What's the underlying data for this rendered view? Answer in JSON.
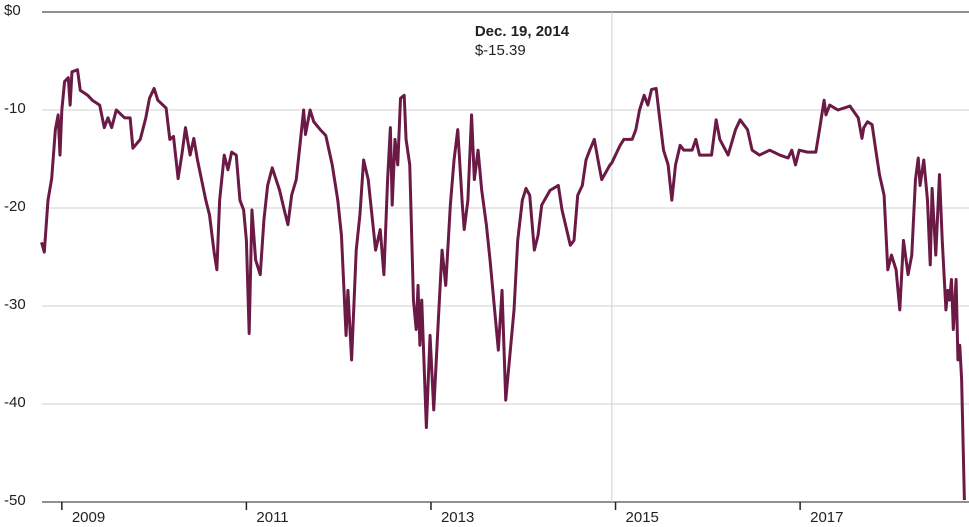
{
  "chart_data": {
    "type": "line",
    "xlim": [
      2008.33,
      2018.83
    ],
    "xticks": [
      2009,
      2011,
      2013,
      2015,
      2017
    ],
    "ylim": [
      -50,
      0
    ],
    "yticks": [
      {
        "value": 0,
        "label": "$0"
      },
      -10,
      -20,
      -30,
      -40,
      -50
    ],
    "grid": true,
    "annotation": {
      "x": 2014.96,
      "label": "Dec. 19, 2014",
      "value": -15.39,
      "value_label": "$-15.39"
    },
    "series": [
      {
        "color": "#6b1a45",
        "x": [
          2008.78,
          2008.81,
          2008.85,
          2008.89,
          2008.93,
          2008.96,
          2008.98,
          2009.0,
          2009.03,
          2009.07,
          2009.09,
          2009.11,
          2009.17,
          2009.2,
          2009.28,
          2009.33,
          2009.41,
          2009.46,
          2009.5,
          2009.54,
          2009.59,
          2009.68,
          2009.74,
          2009.77,
          2009.85,
          2009.91,
          2009.95,
          2010.0,
          2010.04,
          2010.13,
          2010.17,
          2010.21,
          2010.26,
          2010.3,
          2010.34,
          2010.39,
          2010.43,
          2010.47,
          2010.56,
          2010.6,
          2010.65,
          2010.68,
          2010.71,
          2010.76,
          2010.8,
          2010.84,
          2010.89,
          2010.93,
          2010.97,
          2011.0,
          2011.03,
          2011.06,
          2011.1,
          2011.15,
          2011.19,
          2011.23,
          2011.28,
          2011.36,
          2011.41,
          2011.45,
          2011.49,
          2011.54,
          2011.58,
          2011.62,
          2011.64,
          2011.69,
          2011.73,
          2011.8,
          2011.86,
          2011.93,
          2011.99,
          2012.03,
          2012.08,
          2012.1,
          2012.14,
          2012.19,
          2012.23,
          2012.27,
          2012.32,
          2012.4,
          2012.45,
          2012.49,
          2012.53,
          2012.56,
          2012.58,
          2012.61,
          2012.64,
          2012.67,
          2012.71,
          2012.73,
          2012.77,
          2012.81,
          2012.84,
          2012.86,
          2012.88,
          2012.9,
          2012.95,
          2012.99,
          2013.03,
          2013.08,
          2013.12,
          2013.16,
          2013.21,
          2013.25,
          2013.29,
          2013.34,
          2013.36,
          2013.4,
          2013.44,
          2013.47,
          2013.51,
          2013.55,
          2013.6,
          2013.64,
          2013.68,
          2013.73,
          2013.77,
          2013.81,
          2013.86,
          2013.9,
          2013.94,
          2013.99,
          2014.03,
          2014.07,
          2014.12,
          2014.16,
          2014.2,
          2014.29,
          2014.38,
          2014.42,
          2014.51,
          2014.55,
          2014.59,
          2014.64,
          2014.68,
          2014.72,
          2014.77,
          2014.81,
          2014.85,
          2014.94,
          2014.96,
          2015.05,
          2015.09,
          2015.18,
          2015.22,
          2015.26,
          2015.31,
          2015.35,
          2015.39,
          2015.44,
          2015.48,
          2015.52,
          2015.57,
          2015.61,
          2015.65,
          2015.7,
          2015.74,
          2015.83,
          2015.87,
          2015.91,
          2016.04,
          2016.09,
          2016.13,
          2016.22,
          2016.3,
          2016.35,
          2016.43,
          2016.48,
          2016.56,
          2016.67,
          2016.78,
          2016.87,
          2016.91,
          2016.95,
          2016.99,
          2017.08,
          2017.17,
          2017.21,
          2017.26,
          2017.28,
          2017.32,
          2017.41,
          2017.54,
          2017.63,
          2017.67,
          2017.69,
          2017.73,
          2017.78,
          2017.82,
          2017.86,
          2017.91,
          2017.95,
          2017.99,
          2018.04,
          2018.08,
          2018.12,
          2018.17,
          2018.21,
          2018.25,
          2018.28,
          2018.3,
          2018.34,
          2018.38,
          2018.41,
          2018.43,
          2018.47,
          2018.51,
          2018.54,
          2018.58,
          2018.6,
          2018.62,
          2018.64,
          2018.66,
          2018.69,
          2018.71,
          2018.73,
          2018.75,
          2018.78
        ],
        "values": [
          -23.5,
          -24.5,
          -19.2,
          -17,
          -12,
          -10.5,
          -14.6,
          -10,
          -7.1,
          -6.7,
          -9.5,
          -6.1,
          -5.9,
          -8,
          -8.5,
          -9,
          -9.5,
          -11.8,
          -10.8,
          -11.8,
          -10,
          -10.8,
          -10.8,
          -13.9,
          -13,
          -10.8,
          -8.8,
          -7.8,
          -9,
          -9.8,
          -13,
          -12.7,
          -17,
          -14.6,
          -11.8,
          -14.6,
          -12.9,
          -15.1,
          -19.2,
          -20.7,
          -24.5,
          -26.3,
          -19.2,
          -14.6,
          -16.1,
          -14.3,
          -14.6,
          -19.2,
          -20.2,
          -23.3,
          -32.8,
          -20.2,
          -25.3,
          -26.8,
          -21.2,
          -17.7,
          -15.9,
          -18.2,
          -20.2,
          -21.7,
          -18.7,
          -17.1,
          -13.6,
          -10,
          -12.5,
          -10,
          -11.2,
          -12,
          -12.6,
          -15.6,
          -19.2,
          -22.8,
          -33,
          -28.4,
          -35.5,
          -24.3,
          -20.7,
          -15.1,
          -17.1,
          -24.3,
          -22.2,
          -26.8,
          -17.1,
          -11.8,
          -19.7,
          -13,
          -15.6,
          -8.8,
          -8.5,
          -13,
          -15.6,
          -29.4,
          -32.4,
          -27.9,
          -34,
          -29.4,
          -42.4,
          -33,
          -40.6,
          -31.4,
          -24.3,
          -27.9,
          -19.7,
          -15.1,
          -12,
          -19.7,
          -22.2,
          -19.2,
          -10.5,
          -17.1,
          -14.1,
          -18.2,
          -21.7,
          -25.3,
          -29.4,
          -34.5,
          -28.4,
          -39.6,
          -34.5,
          -30.4,
          -23.3,
          -19.2,
          -18,
          -18.7,
          -24.3,
          -22.8,
          -19.7,
          -18.2,
          -17.7,
          -20.2,
          -23.8,
          -23.3,
          -18.7,
          -17.7,
          -15.1,
          -14.1,
          -13,
          -15.1,
          -17.1,
          -15.6,
          -15.39,
          -13.6,
          -13,
          -13,
          -12,
          -10,
          -8.5,
          -9.5,
          -7.9,
          -7.8,
          -11,
          -14.1,
          -15.6,
          -19.2,
          -15.6,
          -13.6,
          -14.1,
          -14.1,
          -13,
          -14.6,
          -14.6,
          -11,
          -13,
          -14.6,
          -12,
          -11,
          -12,
          -14.1,
          -14.6,
          -14.1,
          -14.6,
          -14.9,
          -14.1,
          -15.6,
          -14.1,
          -14.3,
          -14.3,
          -12,
          -9,
          -10.5,
          -9.5,
          -10,
          -9.6,
          -10.8,
          -12.9,
          -11.8,
          -11.2,
          -11.5,
          -14.1,
          -16.6,
          -18.7,
          -26.3,
          -24.8,
          -26.3,
          -30.4,
          -23.3,
          -26.8,
          -24.8,
          -17.1,
          -14.9,
          -17.7,
          -15.1,
          -19.2,
          -25.8,
          -18,
          -24.8,
          -16.6,
          -23.3,
          -30.4,
          -28.4,
          -29.4,
          -27.3,
          -32.4,
          -27.3,
          -35.5,
          -34,
          -37.5,
          -49.8
        ]
      }
    ]
  }
}
